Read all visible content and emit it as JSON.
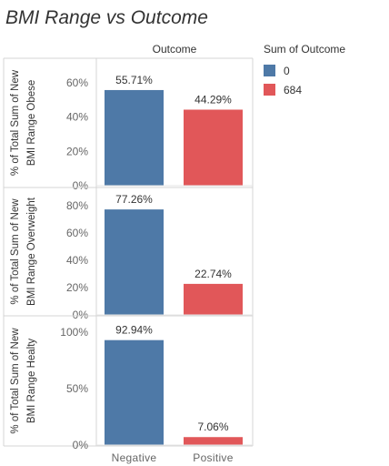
{
  "chart_data": {
    "type": "bar",
    "title": "BMI Range vs Outcome",
    "column_header": "Outcome",
    "categories": [
      "Negative",
      "Positive"
    ],
    "legend": {
      "title": "Sum of Outcome",
      "placement": "right",
      "items": [
        {
          "label": "0",
          "color": "#4e79a7"
        },
        {
          "label": "684",
          "color": "#e15759"
        }
      ]
    },
    "panels": [
      {
        "ylabel_line1": "% of Total Sum of New",
        "ylabel_line2": "BMI Range Obese",
        "ylim": [
          0,
          70
        ],
        "ticks": [
          {
            "value": 0,
            "label": "0%"
          },
          {
            "value": 20,
            "label": "20%"
          },
          {
            "value": 40,
            "label": "40%"
          },
          {
            "value": 60,
            "label": "60%"
          }
        ],
        "values": [
          55.71,
          44.29
        ],
        "data_labels": [
          "55.71%",
          "44.29%"
        ]
      },
      {
        "ylabel_line1": "% of Total Sum of New",
        "ylabel_line2": "BMI Range Overweight",
        "ylim": [
          0,
          88
        ],
        "ticks": [
          {
            "value": 0,
            "label": "0%"
          },
          {
            "value": 20,
            "label": "20%"
          },
          {
            "value": 40,
            "label": "40%"
          },
          {
            "value": 60,
            "label": "60%"
          },
          {
            "value": 80,
            "label": "80%"
          }
        ],
        "values": [
          77.26,
          22.74
        ],
        "data_labels": [
          "77.26%",
          "22.74%"
        ]
      },
      {
        "ylabel_line1": "% of Total Sum of New",
        "ylabel_line2": "BMI Range Healty",
        "ylim": [
          0,
          108
        ],
        "ticks": [
          {
            "value": 0,
            "label": "0%"
          },
          {
            "value": 50,
            "label": "50%"
          },
          {
            "value": 100,
            "label": "100%"
          }
        ],
        "values": [
          92.94,
          7.06
        ],
        "data_labels": [
          "92.94%",
          "7.06%"
        ]
      }
    ]
  }
}
